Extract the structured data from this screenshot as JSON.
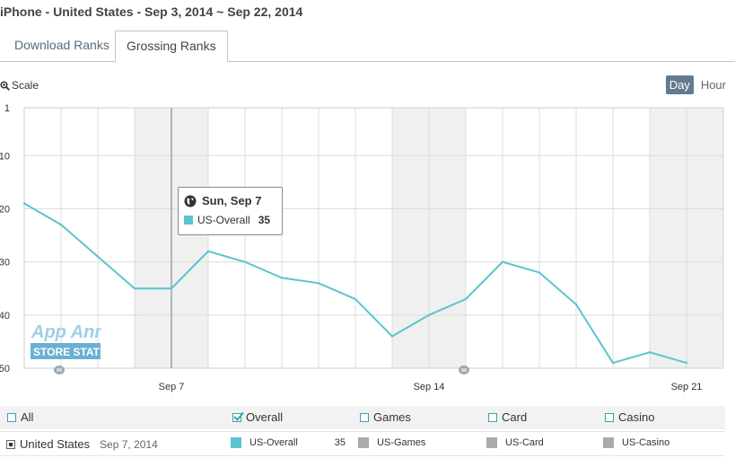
{
  "header": {
    "title": "iPhone - United States - Sep 3, 2014 ~ Sep 22, 2014"
  },
  "tabs": [
    {
      "label": "Download Ranks",
      "active": false
    },
    {
      "label": "Grossing Ranks",
      "active": true
    }
  ],
  "toolbar": {
    "scale_label": "Scale",
    "scale_icon": "zoom-icon",
    "day_label": "Day",
    "hour_label": "Hour",
    "active_period": "Day"
  },
  "tooltip": {
    "date": "Sun, Sep 7",
    "series": "US-Overall",
    "value": "35",
    "icon": "globe-icon"
  },
  "watermark": {
    "line1": "App Annie",
    "line2": "STORE STATS"
  },
  "legend": {
    "all": "All",
    "items": [
      {
        "label": "Overall",
        "checked": true
      },
      {
        "label": "Games",
        "checked": false
      },
      {
        "label": "Card",
        "checked": false
      },
      {
        "label": "Casino",
        "checked": false
      }
    ]
  },
  "filter": {
    "country": "United States",
    "date": "Sep 7, 2014",
    "series": [
      {
        "label": "US-Overall",
        "value": "35",
        "color": "#5bc4ce"
      },
      {
        "label": "US-Games",
        "value": "",
        "color": "#aaaaaa"
      },
      {
        "label": "US-Card",
        "value": "",
        "color": "#aaaaaa"
      },
      {
        "label": "US-Casino",
        "value": "",
        "color": "#aaaaaa"
      }
    ]
  },
  "colors": {
    "line": "#5bc4ce",
    "weekend_band": "#f0f0f0",
    "grid": "#dcdcdc",
    "active_tab_border": "#b9c6cf",
    "day_button": "#657a8e"
  },
  "chart_data": {
    "type": "line",
    "x": [
      "2014-09-03",
      "2014-09-04",
      "2014-09-05",
      "2014-09-06",
      "2014-09-07",
      "2014-09-08",
      "2014-09-09",
      "2014-09-10",
      "2014-09-11",
      "2014-09-12",
      "2014-09-13",
      "2014-09-14",
      "2014-09-15",
      "2014-09-16",
      "2014-09-17",
      "2014-09-18",
      "2014-09-19",
      "2014-09-20",
      "2014-09-21"
    ],
    "series": [
      {
        "name": "US-Overall",
        "values": [
          19,
          23,
          29,
          35,
          35,
          28,
          30,
          33,
          34,
          37,
          44,
          40,
          37,
          30,
          32,
          38,
          49,
          47,
          49
        ]
      }
    ],
    "y_ticks": [
      "1",
      "10",
      "20",
      "30",
      "40",
      "50"
    ],
    "ylim": [
      1,
      50
    ],
    "y_inverted": true,
    "x_ticks": [
      {
        "label": "Sep 7",
        "date": "2014-09-07"
      },
      {
        "label": "Sep 14",
        "date": "2014-09-14"
      },
      {
        "label": "Sep 21",
        "date": "2014-09-21"
      }
    ],
    "grid": true,
    "weekend_bands": [
      [
        "2014-09-06",
        "2014-09-08"
      ],
      [
        "2014-09-13",
        "2014-09-15"
      ],
      [
        "2014-09-20",
        "2014-09-22"
      ]
    ],
    "highlight_date": "2014-09-07"
  }
}
